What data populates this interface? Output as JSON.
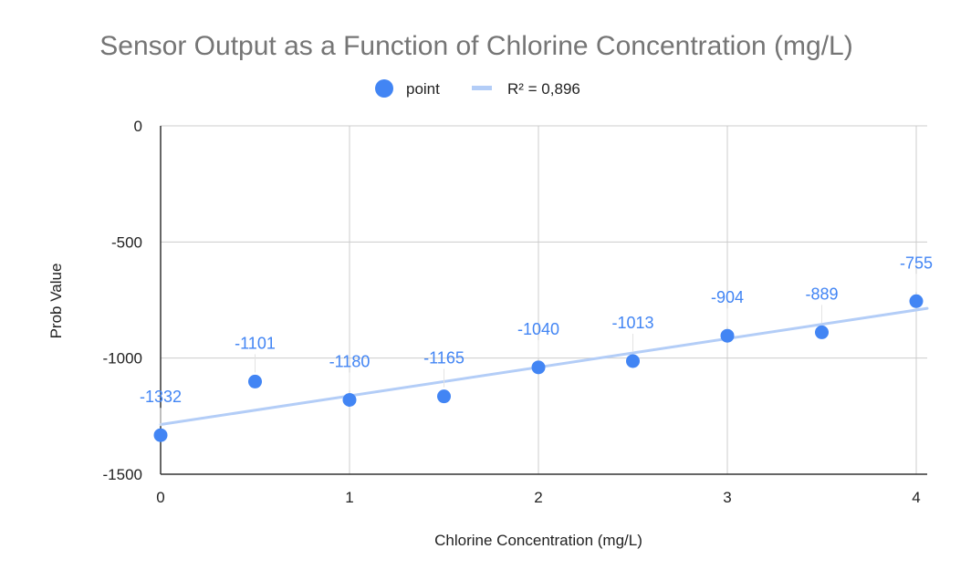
{
  "chart_data": {
    "type": "scatter",
    "title": "Sensor Output as a Function of Chlorine Concentration (mg/L)",
    "xlabel": "Chlorine Concentration (mg/L)",
    "ylabel": "Prob Value",
    "xlim": [
      0,
      4
    ],
    "ylim": [
      -1500,
      0
    ],
    "x_ticks": [
      0,
      1,
      2,
      3,
      4
    ],
    "y_ticks": [
      0,
      -500,
      -1000,
      -1500
    ],
    "grid": true,
    "legend_position": "top",
    "series": [
      {
        "name": "point",
        "color": "#4285f4",
        "x": [
          0,
          0.5,
          1,
          1.5,
          2,
          2.5,
          3,
          3.5,
          4
        ],
        "y": [
          -1332,
          -1101,
          -1180,
          -1165,
          -1040,
          -1013,
          -904,
          -889,
          -755
        ],
        "labels": [
          "-1332",
          "-1101",
          "-1180",
          "-1165",
          "-1040",
          "-1013",
          "-904",
          "-889",
          "-755"
        ]
      }
    ],
    "trendline": {
      "type": "linear",
      "label": "R² = 0,896",
      "color": "#b3cdf7",
      "y_at_xmin": -1286,
      "y_at_xmax": -793
    }
  }
}
